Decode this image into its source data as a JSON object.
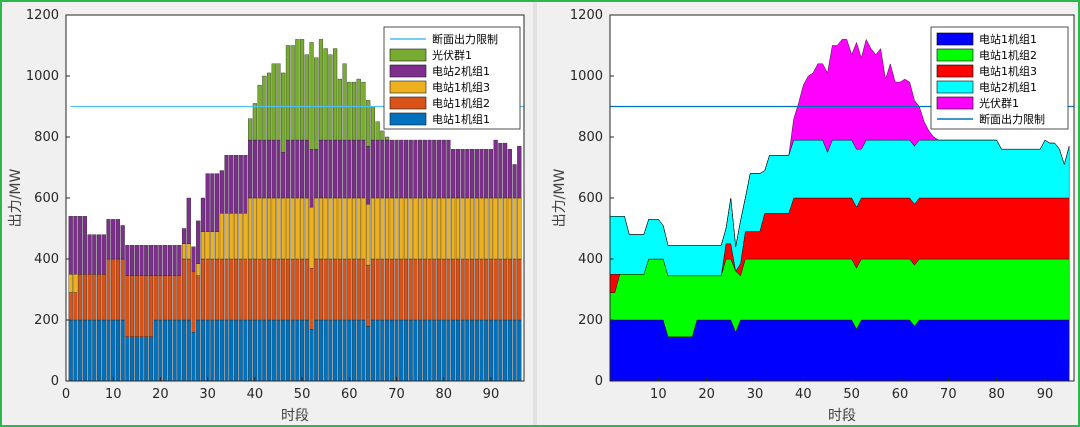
{
  "chart_data": [
    {
      "id": "left",
      "type": "bar",
      "stacked": true,
      "xlabel": "时段",
      "ylabel": "出力/MW",
      "xlim": [
        0,
        97
      ],
      "ylim": [
        0,
        1200
      ],
      "xticks": [
        0,
        10,
        20,
        30,
        40,
        50,
        60,
        70,
        80,
        90
      ],
      "yticks": [
        0,
        200,
        400,
        600,
        800,
        1000,
        1200
      ],
      "limit_line": {
        "name": "断面出力限制",
        "value": 900,
        "color": "#4dbeee"
      },
      "legend_position": "top-right",
      "legend_entries": [
        "断面出力限制",
        "光伏群1",
        "电站2机组1",
        "电站1机组3",
        "电站1机组2",
        "电站1机组1"
      ],
      "x": [
        1,
        2,
        3,
        4,
        5,
        6,
        7,
        8,
        9,
        10,
        11,
        12,
        13,
        14,
        15,
        16,
        17,
        18,
        19,
        20,
        21,
        22,
        23,
        24,
        25,
        26,
        27,
        28,
        29,
        30,
        31,
        32,
        33,
        34,
        35,
        36,
        37,
        38,
        39,
        40,
        41,
        42,
        43,
        44,
        45,
        46,
        47,
        48,
        49,
        50,
        51,
        52,
        53,
        54,
        55,
        56,
        57,
        58,
        59,
        60,
        61,
        62,
        63,
        64,
        65,
        66,
        67,
        68,
        69,
        70,
        71,
        72,
        73,
        74,
        75,
        76,
        77,
        78,
        79,
        80,
        81,
        82,
        83,
        84,
        85,
        86,
        87,
        88,
        89,
        90,
        91,
        92,
        93,
        94,
        95,
        96
      ],
      "series": [
        {
          "name": "电站1机组1",
          "color": "#0072bd",
          "values": [
            200,
            200,
            200,
            200,
            200,
            200,
            200,
            200,
            200,
            200,
            200,
            200,
            145,
            145,
            145,
            145,
            145,
            145,
            200,
            200,
            200,
            200,
            200,
            200,
            200,
            200,
            160,
            200,
            200,
            200,
            200,
            200,
            200,
            200,
            200,
            200,
            200,
            200,
            200,
            200,
            200,
            200,
            200,
            200,
            200,
            200,
            200,
            200,
            200,
            200,
            200,
            170,
            200,
            200,
            200,
            200,
            200,
            200,
            200,
            200,
            200,
            200,
            200,
            180,
            200,
            200,
            200,
            200,
            200,
            200,
            200,
            200,
            200,
            200,
            200,
            200,
            200,
            200,
            200,
            200,
            200,
            200,
            200,
            200,
            200,
            200,
            200,
            200,
            200,
            200,
            200,
            200,
            200,
            200,
            200,
            200
          ]
        },
        {
          "name": "电站1机组2",
          "color": "#d95319",
          "values": [
            90,
            90,
            150,
            150,
            150,
            150,
            150,
            150,
            200,
            200,
            200,
            200,
            200,
            200,
            200,
            200,
            200,
            200,
            145,
            145,
            145,
            145,
            145,
            145,
            200,
            200,
            200,
            145,
            200,
            200,
            200,
            200,
            200,
            200,
            200,
            200,
            200,
            200,
            200,
            200,
            200,
            200,
            200,
            200,
            200,
            200,
            200,
            200,
            200,
            200,
            200,
            200,
            200,
            200,
            200,
            200,
            200,
            200,
            200,
            200,
            200,
            200,
            200,
            200,
            200,
            200,
            200,
            200,
            200,
            200,
            200,
            200,
            200,
            200,
            200,
            200,
            200,
            200,
            200,
            200,
            200,
            200,
            200,
            200,
            200,
            200,
            200,
            200,
            200,
            200,
            200,
            200,
            200,
            200,
            200,
            200
          ]
        },
        {
          "name": "电站1机组3",
          "color": "#edb120",
          "values": [
            60,
            60,
            0,
            0,
            0,
            0,
            0,
            0,
            0,
            0,
            0,
            0,
            0,
            0,
            0,
            0,
            0,
            0,
            0,
            0,
            0,
            0,
            0,
            0,
            50,
            50,
            0,
            40,
            90,
            90,
            90,
            90,
            150,
            150,
            150,
            150,
            150,
            150,
            200,
            200,
            200,
            200,
            200,
            200,
            200,
            200,
            200,
            200,
            200,
            200,
            200,
            200,
            200,
            200,
            200,
            200,
            200,
            200,
            200,
            200,
            200,
            200,
            200,
            200,
            200,
            200,
            200,
            200,
            200,
            200,
            200,
            200,
            200,
            200,
            200,
            200,
            200,
            200,
            200,
            200,
            200,
            200,
            200,
            200,
            200,
            200,
            200,
            200,
            200,
            200,
            200,
            200,
            200,
            200,
            200,
            200
          ]
        },
        {
          "name": "电站2机组1",
          "color": "#7e2f8e",
          "values": [
            190,
            190,
            190,
            190,
            130,
            130,
            130,
            130,
            130,
            130,
            130,
            110,
            100,
            100,
            100,
            100,
            100,
            100,
            100,
            100,
            100,
            100,
            100,
            100,
            50,
            150,
            80,
            140,
            110,
            190,
            190,
            190,
            140,
            190,
            190,
            190,
            190,
            190,
            190,
            190,
            190,
            190,
            190,
            190,
            190,
            150,
            190,
            190,
            190,
            190,
            190,
            190,
            160,
            190,
            190,
            190,
            190,
            190,
            190,
            190,
            190,
            190,
            190,
            190,
            190,
            190,
            190,
            190,
            190,
            190,
            190,
            190,
            190,
            190,
            190,
            190,
            190,
            190,
            190,
            190,
            190,
            160,
            160,
            160,
            160,
            160,
            160,
            160,
            160,
            160,
            190,
            180,
            180,
            160,
            110,
            170
          ]
        },
        {
          "name": "光伏群1",
          "color": "#77ac30",
          "values": [
            0,
            0,
            0,
            0,
            0,
            0,
            0,
            0,
            0,
            0,
            0,
            0,
            0,
            0,
            0,
            0,
            0,
            0,
            0,
            0,
            0,
            0,
            0,
            0,
            0,
            0,
            0,
            0,
            0,
            0,
            0,
            0,
            0,
            0,
            0,
            0,
            0,
            0,
            70,
            120,
            180,
            210,
            220,
            250,
            250,
            260,
            310,
            310,
            330,
            330,
            280,
            350,
            300,
            330,
            300,
            280,
            300,
            200,
            250,
            190,
            190,
            200,
            190,
            150,
            110,
            60,
            30,
            10,
            0,
            0,
            0,
            0,
            0,
            0,
            0,
            0,
            0,
            0,
            0,
            0,
            0,
            0,
            0,
            0,
            0,
            0,
            0,
            0,
            0,
            0,
            0,
            0,
            0,
            0,
            0,
            0
          ]
        }
      ]
    },
    {
      "id": "right",
      "type": "area",
      "stacked": true,
      "xlabel": "时段",
      "ylabel": "出力/MW",
      "xlim": [
        0,
        96
      ],
      "ylim": [
        0,
        1200
      ],
      "xticks": [
        10,
        20,
        30,
        40,
        50,
        60,
        70,
        80,
        90
      ],
      "yticks": [
        0,
        200,
        400,
        600,
        800,
        1000,
        1200
      ],
      "limit_line": {
        "name": "断面出力限制",
        "value": 900,
        "color": "#0072bd"
      },
      "legend_position": "top-right",
      "legend_entries": [
        "电站1机组1",
        "电站1机组2",
        "电站1机组3",
        "电站2机组1",
        "光伏群1",
        "断面出力限制"
      ],
      "series": [
        {
          "name": "电站1机组1",
          "color": "#0000ff"
        },
        {
          "name": "电站1机组2",
          "color": "#00ff00"
        },
        {
          "name": "电站1机组3",
          "color": "#ff0000"
        },
        {
          "name": "电站2机组1",
          "color": "#00ffff"
        },
        {
          "name": "光伏群1",
          "color": "#ff00ff"
        }
      ]
    }
  ]
}
